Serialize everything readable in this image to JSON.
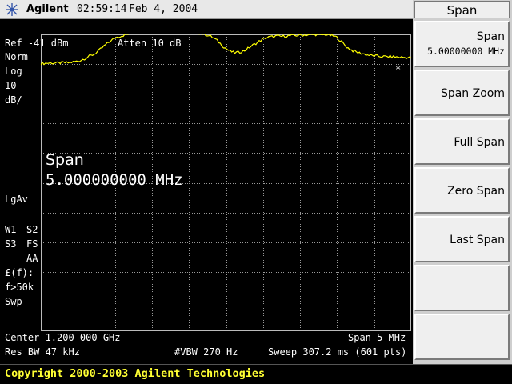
{
  "header": {
    "brand": "Agilent",
    "time": "02:59:14",
    "date": "Feb 4, 2004",
    "logo_icon": "agilent-spark-icon"
  },
  "display": {
    "ref_level": "Ref -41 dBm",
    "atten": "Atten 10 dB",
    "detector": "Norm",
    "scale_type": "Log",
    "scale_value": "10",
    "scale_unit": "dB/",
    "marker_star": "*",
    "active_function_label": "Span",
    "active_function_value": "5.000000000 MHz",
    "avg_mode": "LgAv",
    "trace_w1": "W1",
    "trace_s2": "S2",
    "trace_s3": "S3",
    "trace_fs": "FS",
    "trace_aa": "AA",
    "corr_symbol": "£(f):",
    "corr_threshold": "f>50k",
    "sweep_mode": "Swp",
    "center": "Center 1.200 000 GHz",
    "span": "Span 5 MHz",
    "res_bw": "Res BW 47 kHz",
    "vbw": "#VBW 270 Hz",
    "sweep": "Sweep 307.2 ms (601 pts)",
    "trace_color": "#ffff00",
    "grid_color": "#9a9a9a",
    "trace": {
      "reference_division": 0,
      "points_db_from_top": [
        -50.8,
        -50.7,
        -50.6,
        -50.7,
        -50.5,
        -50.6,
        -50.3,
        -50.0,
        -49.3,
        -48.4,
        -47.6,
        -46.2,
        -44.6,
        -43.2,
        -42.0,
        -41.5,
        -41.0,
        -40.6,
        -40.2,
        -39.8,
        -39.6,
        -39.4,
        -39.4,
        -39.2,
        -39.3,
        -39.5,
        -39.3,
        -39.5,
        -39.8,
        -40.3,
        -40.7,
        -41.2,
        -42.0,
        -43.3,
        -45.1,
        -46.4,
        -47.2,
        -47.0,
        -46.4,
        -45.2,
        -44.1,
        -43.0,
        -42.1,
        -41.8,
        -41.6,
        -41.7,
        -41.5,
        -41.4,
        -41.3,
        -41.2,
        -41.2,
        -41.0,
        -41.3,
        -41.0,
        -41.4,
        -41.8,
        -43.4,
        -45.3,
        -46.4,
        -47.1,
        -47.5,
        -48.0,
        -48.2,
        -48.4,
        -48.5,
        -48.5,
        -48.6,
        -48.7,
        -48.8,
        -48.9
      ]
    }
  },
  "softkeys": {
    "title": "Span",
    "keys": [
      {
        "label": "Span",
        "sub": "5.00000000 MHz"
      },
      {
        "label": "Span Zoom"
      },
      {
        "label": "Full Span"
      },
      {
        "label": "Zero Span"
      },
      {
        "label": "Last Span"
      },
      {
        "label": ""
      },
      {
        "label": ""
      }
    ]
  },
  "footer": {
    "copyright": "Copyright 2000-2003 Agilent Technologies"
  }
}
